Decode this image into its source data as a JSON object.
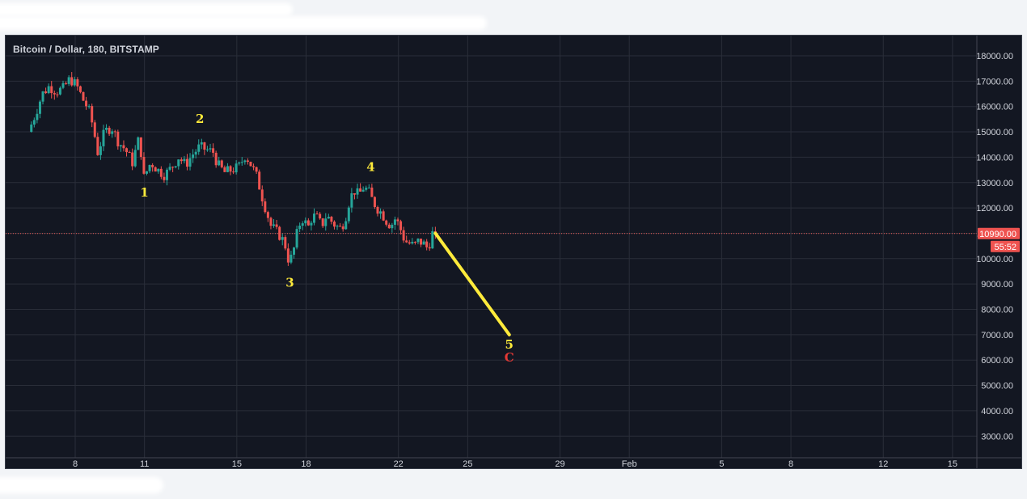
{
  "chart_data": {
    "type": "candlestick",
    "title": "Bitcoin / Dollar, 180, BITSTAMP",
    "y_axis": {
      "position": "right",
      "ticks": [
        18000,
        17000,
        16000,
        15000,
        14000,
        13000,
        12000,
        11000,
        10000,
        9000,
        8000,
        7000,
        6000,
        5000,
        4000,
        3000
      ],
      "tick_labels": [
        "18000.00",
        "17000.00",
        "16000.00",
        "15000.00",
        "14000.00",
        "13000.00",
        "12000.00",
        "11000.00",
        "10000.00",
        "9000.00",
        "8000.00",
        "7000.00",
        "6000.00",
        "5000.00",
        "4000.00",
        "3000.00"
      ]
    },
    "x_axis": {
      "ticks": [
        {
          "label": "8",
          "day": 8
        },
        {
          "label": "11",
          "day": 11
        },
        {
          "label": "15",
          "day": 15
        },
        {
          "label": "18",
          "day": 18
        },
        {
          "label": "22",
          "day": 22
        },
        {
          "label": "25",
          "day": 25
        },
        {
          "label": "29",
          "day": 29
        },
        {
          "label": "Feb",
          "day": 32
        },
        {
          "label": "5",
          "day": 36
        },
        {
          "label": "8",
          "day": 39
        },
        {
          "label": "12",
          "day": 43
        },
        {
          "label": "15",
          "day": 46
        }
      ]
    },
    "price_path": [
      {
        "day": 6.1,
        "price": 15000
      },
      {
        "day": 6.4,
        "price": 15700
      },
      {
        "day": 6.7,
        "price": 16500
      },
      {
        "day": 7.0,
        "price": 16800
      },
      {
        "day": 7.3,
        "price": 16600
      },
      {
        "day": 7.6,
        "price": 16700
      },
      {
        "day": 7.9,
        "price": 17100
      },
      {
        "day": 8.2,
        "price": 16800
      },
      {
        "day": 8.5,
        "price": 16200
      },
      {
        "day": 8.7,
        "price": 15900
      },
      {
        "day": 8.9,
        "price": 15200
      },
      {
        "day": 9.1,
        "price": 14200
      },
      {
        "day": 9.4,
        "price": 15000
      },
      {
        "day": 9.7,
        "price": 15200
      },
      {
        "day": 10.0,
        "price": 14600
      },
      {
        "day": 10.3,
        "price": 14300
      },
      {
        "day": 10.6,
        "price": 13800
      },
      {
        "day": 10.9,
        "price": 14800
      },
      {
        "day": 11.1,
        "price": 13200
      },
      {
        "day": 11.4,
        "price": 13800
      },
      {
        "day": 11.7,
        "price": 13500
      },
      {
        "day": 12.0,
        "price": 13300
      },
      {
        "day": 12.3,
        "price": 13600
      },
      {
        "day": 12.6,
        "price": 14000
      },
      {
        "day": 12.9,
        "price": 13700
      },
      {
        "day": 13.2,
        "price": 14100
      },
      {
        "day": 13.5,
        "price": 14400
      },
      {
        "day": 13.8,
        "price": 14300
      },
      {
        "day": 14.1,
        "price": 14200
      },
      {
        "day": 14.3,
        "price": 13700
      },
      {
        "day": 14.6,
        "price": 13400
      },
      {
        "day": 14.9,
        "price": 13500
      },
      {
        "day": 15.2,
        "price": 13600
      },
      {
        "day": 15.5,
        "price": 14100
      },
      {
        "day": 15.8,
        "price": 13600
      },
      {
        "day": 16.0,
        "price": 13200
      },
      {
        "day": 16.2,
        "price": 12500
      },
      {
        "day": 16.4,
        "price": 11900
      },
      {
        "day": 16.6,
        "price": 11300
      },
      {
        "day": 16.8,
        "price": 11100
      },
      {
        "day": 17.0,
        "price": 10900
      },
      {
        "day": 17.2,
        "price": 10600
      },
      {
        "day": 17.4,
        "price": 9800
      },
      {
        "day": 17.6,
        "price": 10400
      },
      {
        "day": 17.8,
        "price": 11300
      },
      {
        "day": 18.0,
        "price": 11600
      },
      {
        "day": 18.2,
        "price": 11200
      },
      {
        "day": 18.4,
        "price": 11700
      },
      {
        "day": 18.6,
        "price": 11600
      },
      {
        "day": 18.8,
        "price": 11300
      },
      {
        "day": 19.0,
        "price": 11700
      },
      {
        "day": 19.2,
        "price": 11500
      },
      {
        "day": 19.4,
        "price": 11300
      },
      {
        "day": 19.6,
        "price": 11200
      },
      {
        "day": 19.8,
        "price": 11500
      },
      {
        "day": 20.0,
        "price": 12300
      },
      {
        "day": 20.2,
        "price": 12700
      },
      {
        "day": 20.4,
        "price": 12500
      },
      {
        "day": 20.6,
        "price": 12800
      },
      {
        "day": 20.8,
        "price": 12700
      },
      {
        "day": 21.0,
        "price": 12300
      },
      {
        "day": 21.2,
        "price": 12000
      },
      {
        "day": 21.4,
        "price": 11800
      },
      {
        "day": 21.6,
        "price": 11500
      },
      {
        "day": 21.8,
        "price": 11300
      },
      {
        "day": 22.0,
        "price": 11600
      },
      {
        "day": 22.2,
        "price": 11200
      },
      {
        "day": 22.4,
        "price": 10700
      },
      {
        "day": 22.6,
        "price": 10600
      },
      {
        "day": 22.8,
        "price": 10500
      },
      {
        "day": 23.0,
        "price": 10700
      },
      {
        "day": 23.2,
        "price": 10600
      },
      {
        "day": 23.4,
        "price": 10400
      },
      {
        "day": 23.6,
        "price": 10990
      }
    ],
    "last_price": {
      "value": 10990,
      "label": "10990.00",
      "timer": "55:52"
    },
    "projection_line": {
      "from": {
        "day": 23.6,
        "price": 11000
      },
      "to": {
        "day": 26.8,
        "price": 7000
      },
      "color": "#ffeb3b"
    },
    "wave_labels": [
      {
        "text": "1",
        "day": 11.0,
        "price": 12450,
        "color": "#ffeb3b"
      },
      {
        "text": "2",
        "day": 13.4,
        "price": 15350,
        "color": "#ffeb3b"
      },
      {
        "text": "3",
        "day": 17.3,
        "price": 8900,
        "color": "#ffeb3b"
      },
      {
        "text": "4",
        "day": 20.8,
        "price": 13450,
        "color": "#ffeb3b"
      },
      {
        "text": "5",
        "day": 26.8,
        "price": 6450,
        "color": "#ffeb3b"
      },
      {
        "text": "C",
        "day": 26.8,
        "price": 5950,
        "color": "#e53935"
      }
    ],
    "colors": {
      "up": "#26a69a",
      "down": "#ef5350",
      "grid": "#2a2e39",
      "axis_text": "#d1d4dc",
      "background": "#131722"
    }
  }
}
